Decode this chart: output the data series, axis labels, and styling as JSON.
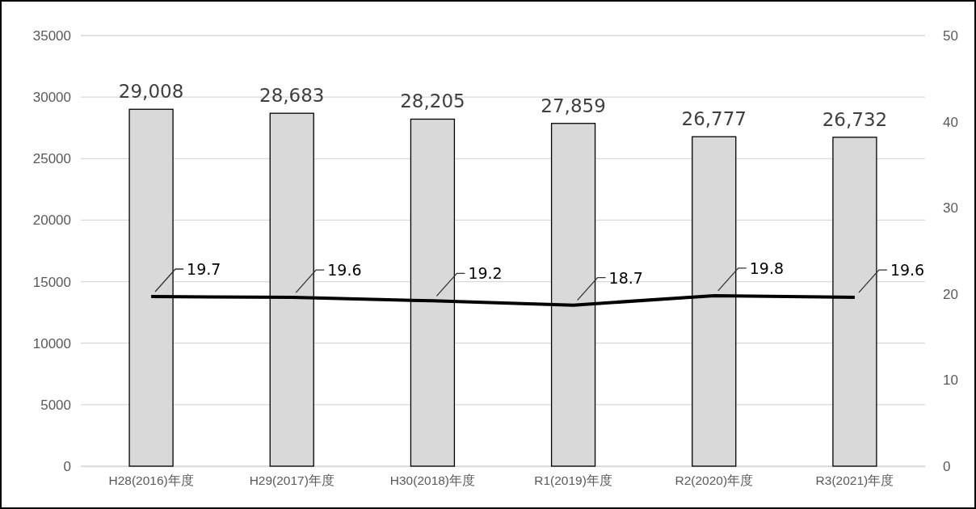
{
  "chart_data": {
    "type": "bar",
    "categories": [
      "H28(2016)年度",
      "H29(2017)年度",
      "H30(2018)年度",
      "R1(2019)年度",
      "R2(2020)年度",
      "R3(2021)年度"
    ],
    "series": [
      {
        "color": "#d9d9d9",
        "values": [
          29008,
          28683,
          28205,
          27859,
          26777,
          26732
        ],
        "value_labels": [
          "29,008",
          "28,683",
          "28,205",
          "27,859",
          "26,777",
          "26,732"
        ]
      },
      {
        "type": "line",
        "axis": "y2",
        "color": "#000000",
        "values": [
          19.7,
          19.6,
          19.2,
          18.7,
          19.8,
          19.6
        ],
        "value_labels": [
          "19.7",
          "19.6",
          "19.2",
          "18.7",
          "19.8",
          "19.6"
        ]
      }
    ],
    "ylim": [
      0,
      35000
    ],
    "yticks": [
      0,
      5000,
      10000,
      15000,
      20000,
      25000,
      30000,
      35000
    ],
    "y2lim": [
      0,
      50
    ],
    "y2ticks": [
      0,
      10,
      20,
      30,
      40,
      50
    ],
    "grid": "y",
    "marker": "none",
    "line_style": "solid"
  }
}
